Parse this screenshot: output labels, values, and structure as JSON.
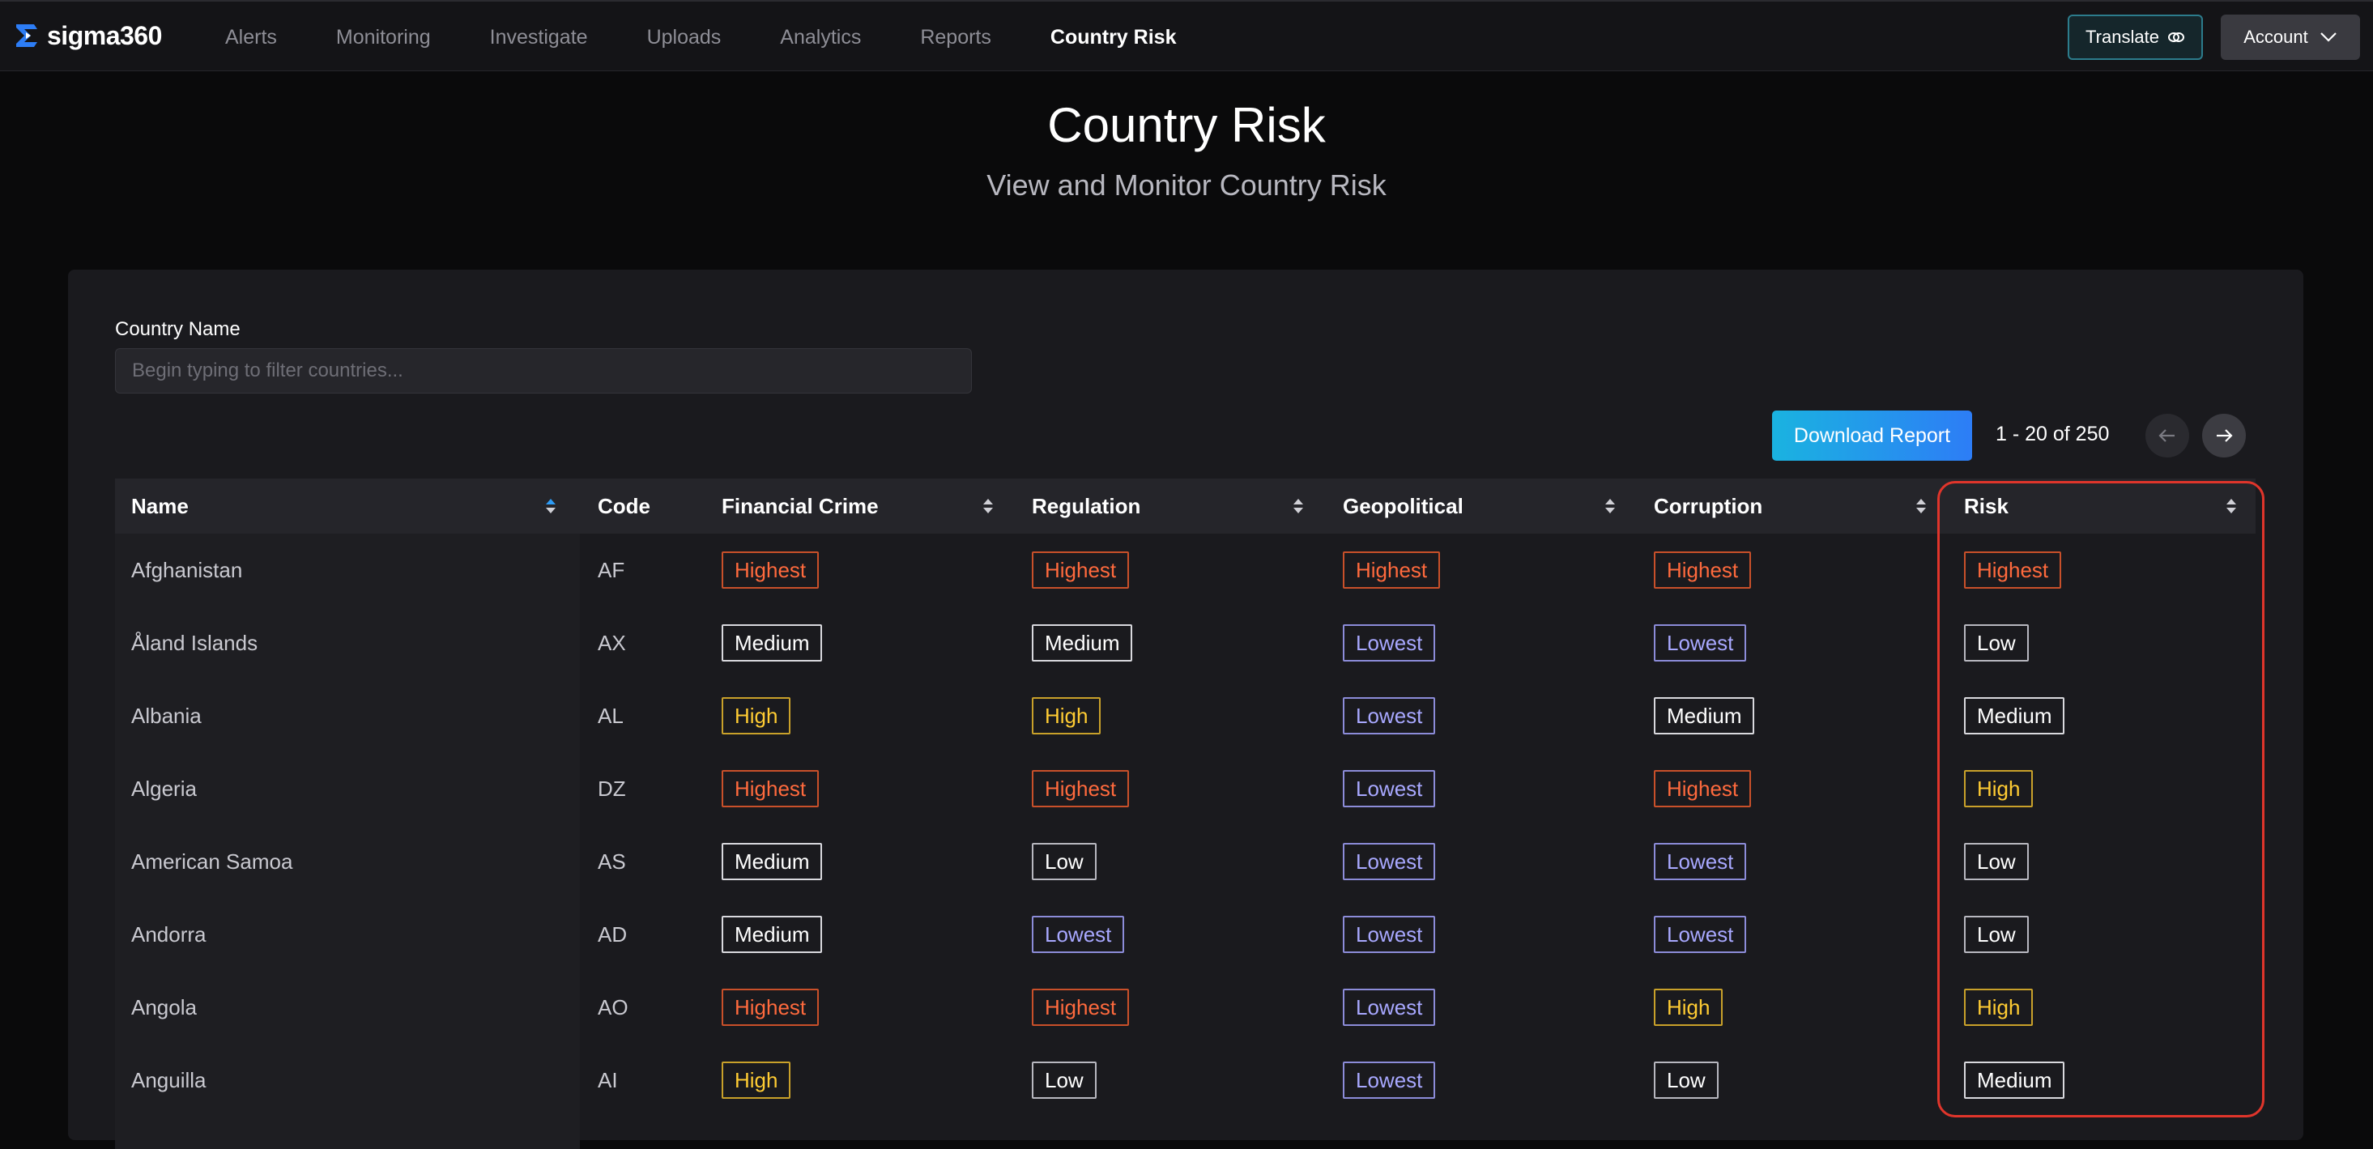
{
  "brand": {
    "name": "sigma360"
  },
  "nav": {
    "links": [
      {
        "label": "Alerts",
        "active": false
      },
      {
        "label": "Monitoring",
        "active": false
      },
      {
        "label": "Investigate",
        "active": false
      },
      {
        "label": "Uploads",
        "active": false
      },
      {
        "label": "Analytics",
        "active": false
      },
      {
        "label": "Reports",
        "active": false
      },
      {
        "label": "Country Risk",
        "active": true
      }
    ],
    "translate_label": "Translate",
    "account_label": "Account"
  },
  "header": {
    "title": "Country Risk",
    "subtitle": "View and Monitor Country Risk"
  },
  "filter": {
    "label": "Country Name",
    "value": "",
    "placeholder": "Begin typing to filter countries..."
  },
  "actions": {
    "download_label": "Download Report",
    "pagination": "1 - 20 of 250"
  },
  "table": {
    "columns": [
      {
        "key": "name",
        "label": "Name",
        "sortable": true,
        "sort_active": true
      },
      {
        "key": "code",
        "label": "Code",
        "sortable": false
      },
      {
        "key": "financial_crime",
        "label": "Financial Crime",
        "sortable": true
      },
      {
        "key": "regulation",
        "label": "Regulation",
        "sortable": true
      },
      {
        "key": "geopolitical",
        "label": "Geopolitical",
        "sortable": true
      },
      {
        "key": "corruption",
        "label": "Corruption",
        "sortable": true
      },
      {
        "key": "risk",
        "label": "Risk",
        "sortable": true
      }
    ],
    "rows": [
      {
        "name": "Afghanistan",
        "code": "AF",
        "financial_crime": "Highest",
        "regulation": "Highest",
        "geopolitical": "Highest",
        "corruption": "Highest",
        "risk": "Highest"
      },
      {
        "name": "Åland Islands",
        "code": "AX",
        "financial_crime": "Medium",
        "regulation": "Medium",
        "geopolitical": "Lowest",
        "corruption": "Lowest",
        "risk": "Low"
      },
      {
        "name": "Albania",
        "code": "AL",
        "financial_crime": "High",
        "regulation": "High",
        "geopolitical": "Lowest",
        "corruption": "Medium",
        "risk": "Medium"
      },
      {
        "name": "Algeria",
        "code": "DZ",
        "financial_crime": "Highest",
        "regulation": "Highest",
        "geopolitical": "Lowest",
        "corruption": "Highest",
        "risk": "High"
      },
      {
        "name": "American Samoa",
        "code": "AS",
        "financial_crime": "Medium",
        "regulation": "Low",
        "geopolitical": "Lowest",
        "corruption": "Lowest",
        "risk": "Low"
      },
      {
        "name": "Andorra",
        "code": "AD",
        "financial_crime": "Medium",
        "regulation": "Lowest",
        "geopolitical": "Lowest",
        "corruption": "Lowest",
        "risk": "Low"
      },
      {
        "name": "Angola",
        "code": "AO",
        "financial_crime": "Highest",
        "regulation": "Highest",
        "geopolitical": "Lowest",
        "corruption": "High",
        "risk": "High"
      },
      {
        "name": "Anguilla",
        "code": "AI",
        "financial_crime": "High",
        "regulation": "Low",
        "geopolitical": "Lowest",
        "corruption": "Low",
        "risk": "Medium"
      }
    ]
  },
  "colors": {
    "highest": "#ff6a3d",
    "high": "#ffcc33",
    "medium": "#ffffff",
    "low": "#ffffff",
    "lowest": "#a8a8ff",
    "highlight_outline": "#e0352b",
    "download_gradient_start": "#1ab3e0",
    "download_gradient_end": "#2d7df6"
  },
  "icons": {
    "logo": "sigma360-logo-icon",
    "translate": "eye-toggle-icon",
    "account": "chevron-down-icon",
    "sort": "sort-arrows-icon",
    "prev": "arrow-left-icon",
    "next": "arrow-right-icon"
  }
}
